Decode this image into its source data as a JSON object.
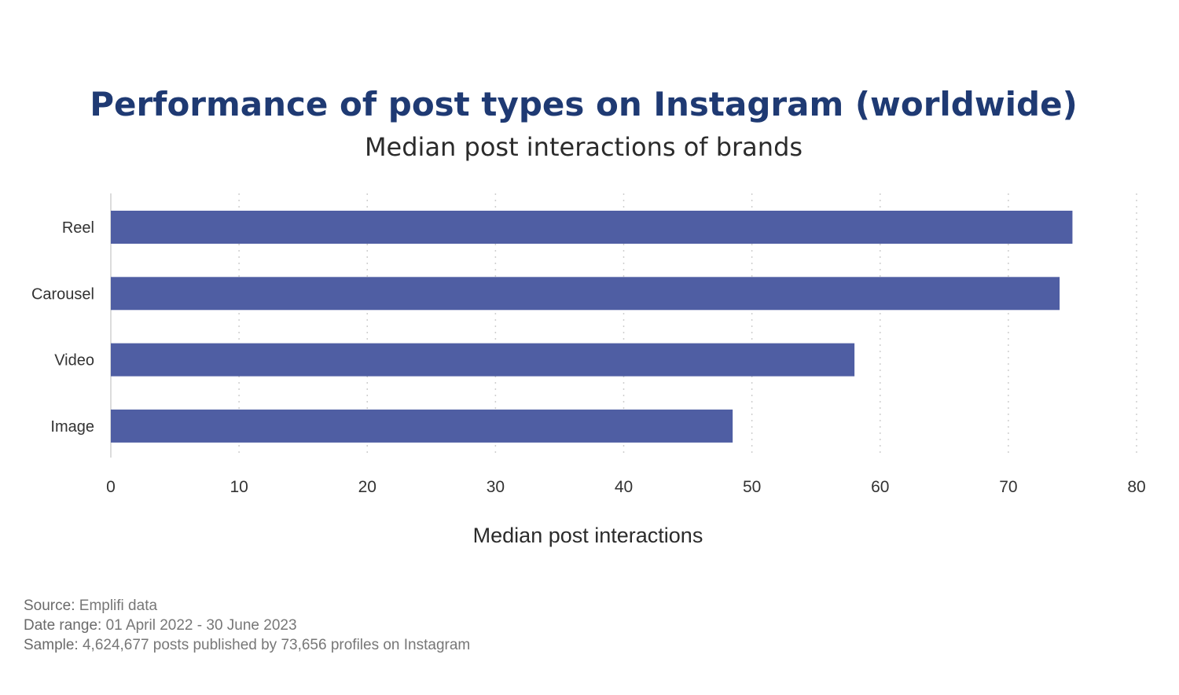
{
  "title": "Performance of post types on Instagram (worldwide)",
  "subtitle": "Median post interactions of brands",
  "chart_data": {
    "type": "bar",
    "orientation": "horizontal",
    "categories": [
      "Reel",
      "Carousel",
      "Video",
      "Image"
    ],
    "values": [
      75,
      74,
      58,
      48.5
    ],
    "xlabel": "Median post interactions",
    "ylabel": "",
    "xlim": [
      0,
      80
    ],
    "xticks": [
      0,
      10,
      20,
      30,
      40,
      50,
      60,
      70,
      80
    ],
    "grid": "vertical dotted",
    "bar_color": "#4f5ea3"
  },
  "footer": {
    "source_label": "Source:",
    "source_value": "Emplifi data",
    "date_label": "Date range:",
    "date_value": "01 April 2022 - 30 June 2023",
    "sample_label": "Sample:",
    "sample_value": "4,624,677 posts published by 73,656 profiles on Instagram"
  }
}
